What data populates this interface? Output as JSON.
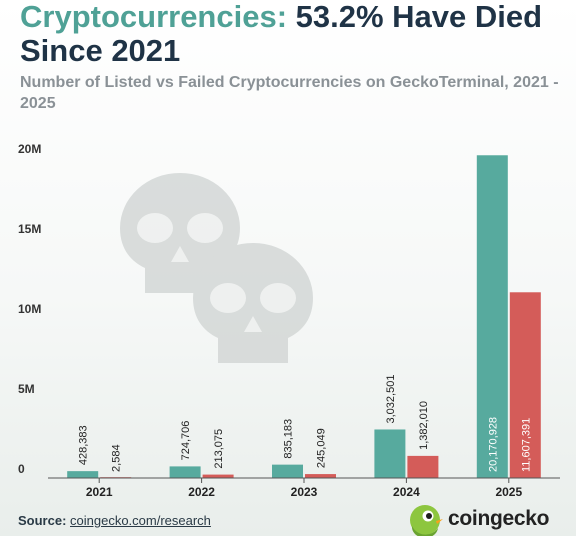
{
  "header": {
    "title_accent": "Cryptocurrencies:",
    "title_rest": " 53.2% Have Died Since 2021",
    "subtitle": "Number of Listed vs Failed Cryptocurrencies on GeckoTerminal, 2021 - 2025"
  },
  "chart_data": {
    "type": "bar",
    "categories": [
      "2021",
      "2022",
      "2023",
      "2024",
      "2025"
    ],
    "series": [
      {
        "values": [
          428383,
          724706,
          835183,
          3032501,
          20170928
        ],
        "labels": [
          "428,383",
          "724,706",
          "835,183",
          "3,032,501",
          "20,170,928"
        ]
      },
      {
        "values": [
          2584,
          213075,
          245049,
          1382010,
          11607391
        ],
        "labels": [
          "2,584",
          "213,075",
          "245,049",
          "1,382,010",
          "11,607,391"
        ]
      }
    ],
    "ylim": [
      0,
      20000000
    ],
    "yticks": [
      0,
      5000000,
      10000000,
      15000000,
      20000000
    ],
    "ytick_labels": [
      "0",
      "5M",
      "10M",
      "15M",
      "20M"
    ],
    "colors": [
      "#57aa9e",
      "#d45c59"
    ],
    "grid": false
  },
  "footer": {
    "source_label": "Source: ",
    "source_link": "coingecko.com/research",
    "brand": "coingecko"
  }
}
